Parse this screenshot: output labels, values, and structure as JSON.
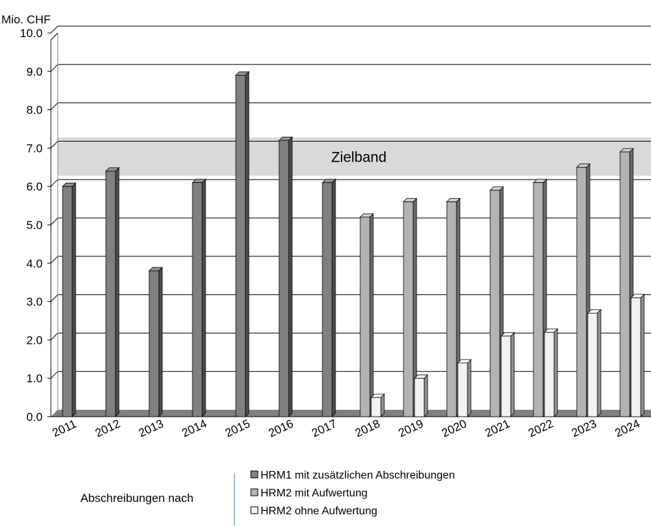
{
  "chart_data": {
    "type": "bar",
    "unit_label": "Mio. CHF",
    "categories": [
      "2011",
      "2012",
      "2013",
      "2014",
      "2015",
      "2016",
      "2017",
      "2018",
      "2019",
      "2020",
      "2021",
      "2022",
      "2023",
      "2024"
    ],
    "ylim": [
      0,
      10
    ],
    "yticks": [
      "0.0",
      "1.0",
      "2.0",
      "3.0",
      "4.0",
      "5.0",
      "6.0",
      "7.0",
      "8.0",
      "9.0",
      "10.0"
    ],
    "grid": true,
    "band": {
      "label": "Zielband",
      "from": 6.1,
      "to": 7.1,
      "color": "#d9d9d9"
    },
    "series": [
      {
        "name": "HRM1 mit zusätzlichen Abschreibungen",
        "color": "#808080",
        "values": [
          6.0,
          6.4,
          3.8,
          6.1,
          8.9,
          7.2,
          6.1,
          null,
          null,
          null,
          null,
          null,
          null,
          null
        ]
      },
      {
        "name": "HRM2 mit Aufwertung",
        "color": "#b3b3b3",
        "values": [
          null,
          null,
          null,
          null,
          null,
          null,
          null,
          5.2,
          5.6,
          5.6,
          5.9,
          6.1,
          6.5,
          6.9
        ]
      },
      {
        "name": "HRM2 ohne Aufwertung",
        "color": "#f2f2f2",
        "values": [
          null,
          null,
          null,
          null,
          null,
          null,
          null,
          0.5,
          1.0,
          1.4,
          2.1,
          2.2,
          2.7,
          3.1
        ]
      }
    ],
    "legend": {
      "title": "Abschreibungen nach",
      "position": "bottom"
    }
  }
}
